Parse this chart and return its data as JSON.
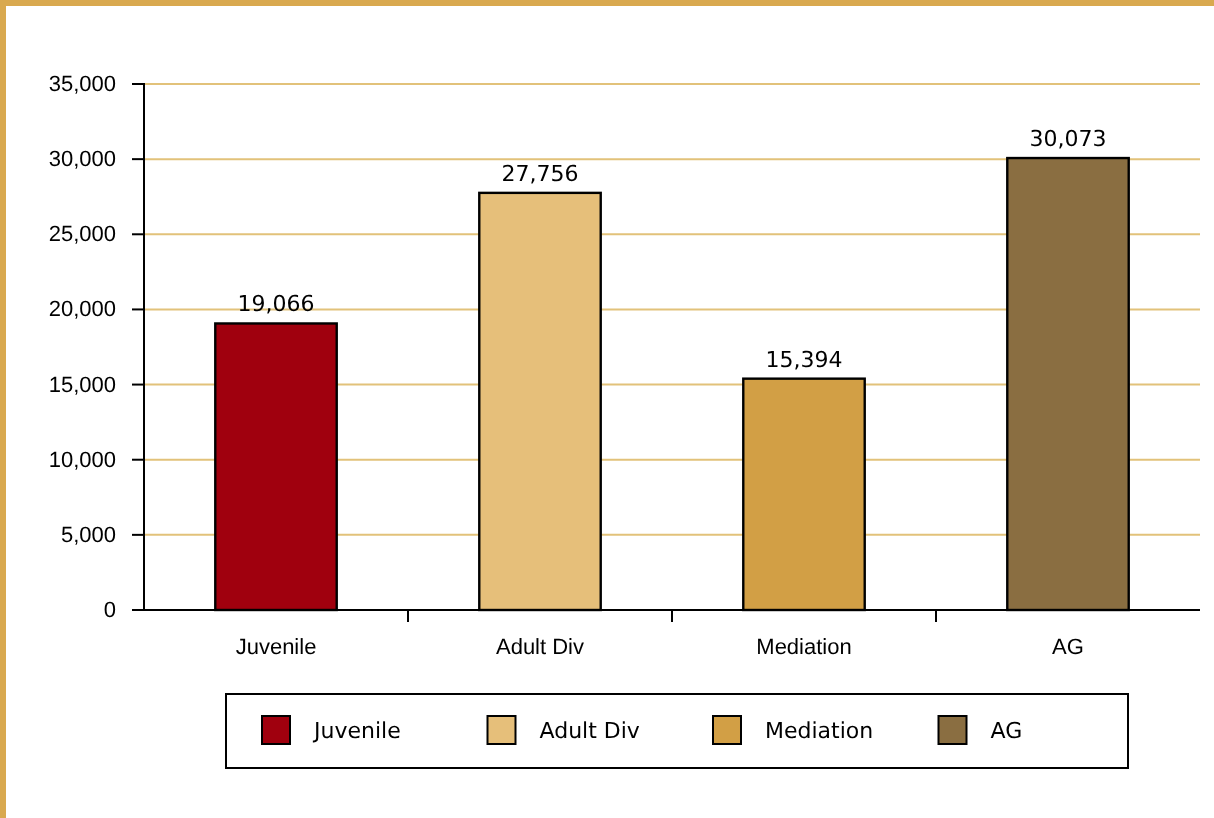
{
  "chart_data": {
    "type": "bar",
    "categories": [
      "Juvenile",
      "Adult Div",
      "Mediation",
      "AG"
    ],
    "series": [
      {
        "name": "Juvenile",
        "color": "#a0000e",
        "values": [
          19066,
          null,
          null,
          null
        ],
        "value_labels": [
          "19,066",
          null,
          null,
          null
        ]
      },
      {
        "name": "Adult Div",
        "color": "#e6bf7a",
        "values": [
          null,
          27756,
          null,
          null
        ],
        "value_labels": [
          null,
          "27,756",
          null,
          null
        ]
      },
      {
        "name": "Mediation",
        "color": "#d29f45",
        "values": [
          null,
          null,
          15394,
          null
        ],
        "value_labels": [
          null,
          null,
          "15,394",
          null
        ]
      },
      {
        "name": "AG",
        "color": "#8a6e41",
        "values": [
          null,
          null,
          null,
          30073
        ],
        "value_labels": [
          null,
          null,
          null,
          "30,073"
        ]
      }
    ],
    "ylim": [
      0,
      35000
    ],
    "yticks": [
      0,
      {
        "value": 5000,
        "label": "5,000"
      },
      {
        "value": 10000,
        "label": "10,000"
      },
      {
        "value": 15000,
        "label": "15,000"
      },
      {
        "value": 20000,
        "label": "20,000"
      },
      {
        "value": 25000,
        "label": "25,000"
      },
      {
        "value": 30000,
        "label": "30,000"
      },
      {
        "value": 35000,
        "label": "35,000"
      }
    ],
    "grid": "y",
    "legend": "bottom"
  }
}
